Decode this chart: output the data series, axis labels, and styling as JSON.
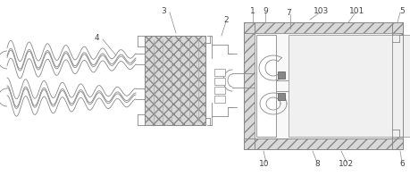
{
  "bg_color": "#ffffff",
  "lc": "#888888",
  "lc_dark": "#555555",
  "label_color": "#444444",
  "hatch_fc": "#d8d8d8",
  "fig_width": 4.6,
  "fig_height": 1.97,
  "dpi": 100
}
